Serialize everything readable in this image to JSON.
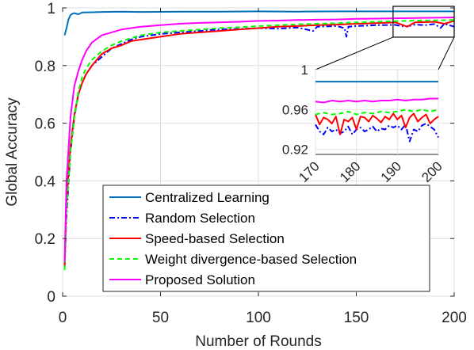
{
  "chart_data": {
    "type": "line",
    "xlabel": "Number of Rounds",
    "ylabel": "Global Accuracy",
    "xlim": [
      0,
      200
    ],
    "ylim": [
      0,
      1
    ],
    "xticks": [
      0,
      50,
      100,
      150,
      200
    ],
    "yticks": [
      0,
      0.2,
      0.4,
      0.6,
      0.8,
      1
    ],
    "xtick_labels": [
      "0",
      "50",
      "100",
      "150",
      "200"
    ],
    "ytick_labels": [
      "0",
      "0.2",
      "0.4",
      "0.6",
      "0.8",
      "1"
    ],
    "grid": true,
    "legend_position": "bottom-right",
    "series": [
      {
        "name": "Centralized Learning",
        "color": "#0072BD",
        "dash": "solid",
        "points": [
          [
            1,
            0.905
          ],
          [
            2,
            0.93
          ],
          [
            3,
            0.96
          ],
          [
            4,
            0.975
          ],
          [
            5,
            0.98
          ],
          [
            6,
            0.982
          ],
          [
            8,
            0.978
          ],
          [
            10,
            0.984
          ],
          [
            15,
            0.985
          ],
          [
            20,
            0.986
          ],
          [
            30,
            0.987
          ],
          [
            40,
            0.986
          ],
          [
            60,
            0.987
          ],
          [
            80,
            0.987
          ],
          [
            100,
            0.988
          ],
          [
            120,
            0.987
          ],
          [
            140,
            0.988
          ],
          [
            160,
            0.988
          ],
          [
            180,
            0.988
          ],
          [
            200,
            0.988
          ]
        ]
      },
      {
        "name": "Random Selection",
        "color": "#0000FF",
        "dash": "dashdot",
        "points": [
          [
            1,
            0.1
          ],
          [
            2,
            0.28
          ],
          [
            4,
            0.5
          ],
          [
            6,
            0.62
          ],
          [
            8,
            0.7
          ],
          [
            10,
            0.74
          ],
          [
            12,
            0.77
          ],
          [
            15,
            0.8
          ],
          [
            20,
            0.83
          ],
          [
            25,
            0.86
          ],
          [
            30,
            0.875
          ],
          [
            35,
            0.89
          ],
          [
            40,
            0.9
          ],
          [
            50,
            0.91
          ],
          [
            60,
            0.915
          ],
          [
            70,
            0.92
          ],
          [
            80,
            0.925
          ],
          [
            90,
            0.927
          ],
          [
            100,
            0.93
          ],
          [
            110,
            0.928
          ],
          [
            120,
            0.932
          ],
          [
            128,
            0.92
          ],
          [
            130,
            0.935
          ],
          [
            140,
            0.937
          ],
          [
            144,
            0.93
          ],
          [
            145,
            0.9
          ],
          [
            146,
            0.935
          ],
          [
            150,
            0.937
          ],
          [
            160,
            0.94
          ],
          [
            170,
            0.941
          ],
          [
            175,
            0.935
          ],
          [
            180,
            0.942
          ],
          [
            185,
            0.94
          ],
          [
            190,
            0.944
          ],
          [
            193,
            0.93
          ],
          [
            195,
            0.945
          ],
          [
            200,
            0.935
          ]
        ]
      },
      {
        "name": "Speed-based Selection",
        "color": "#FF0000",
        "dash": "solid",
        "points": [
          [
            1,
            0.1
          ],
          [
            2,
            0.33
          ],
          [
            4,
            0.52
          ],
          [
            6,
            0.63
          ],
          [
            8,
            0.7
          ],
          [
            10,
            0.74
          ],
          [
            12,
            0.77
          ],
          [
            15,
            0.8
          ],
          [
            20,
            0.84
          ],
          [
            25,
            0.86
          ],
          [
            30,
            0.87
          ],
          [
            35,
            0.885
          ],
          [
            40,
            0.89
          ],
          [
            50,
            0.9
          ],
          [
            60,
            0.91
          ],
          [
            70,
            0.915
          ],
          [
            80,
            0.92
          ],
          [
            90,
            0.925
          ],
          [
            100,
            0.93
          ],
          [
            110,
            0.935
          ],
          [
            120,
            0.937
          ],
          [
            130,
            0.94
          ],
          [
            140,
            0.942
          ],
          [
            150,
            0.945
          ],
          [
            160,
            0.947
          ],
          [
            170,
            0.95
          ],
          [
            176,
            0.935
          ],
          [
            180,
            0.95
          ],
          [
            190,
            0.952
          ],
          [
            195,
            0.945
          ],
          [
            200,
            0.955
          ]
        ]
      },
      {
        "name": "Weight divergence-based Selection",
        "color": "#00FF00",
        "dash": "dashed",
        "points": [
          [
            1,
            0.09
          ],
          [
            2,
            0.3
          ],
          [
            4,
            0.5
          ],
          [
            6,
            0.62
          ],
          [
            8,
            0.71
          ],
          [
            10,
            0.76
          ],
          [
            12,
            0.79
          ],
          [
            15,
            0.82
          ],
          [
            20,
            0.85
          ],
          [
            25,
            0.87
          ],
          [
            30,
            0.885
          ],
          [
            35,
            0.895
          ],
          [
            40,
            0.905
          ],
          [
            50,
            0.915
          ],
          [
            60,
            0.92
          ],
          [
            70,
            0.925
          ],
          [
            80,
            0.93
          ],
          [
            90,
            0.933
          ],
          [
            100,
            0.937
          ],
          [
            110,
            0.94
          ],
          [
            120,
            0.943
          ],
          [
            130,
            0.945
          ],
          [
            140,
            0.947
          ],
          [
            150,
            0.95
          ],
          [
            160,
            0.952
          ],
          [
            170,
            0.954
          ],
          [
            180,
            0.956
          ],
          [
            190,
            0.957
          ],
          [
            200,
            0.958
          ]
        ]
      },
      {
        "name": "Proposed Solution",
        "color": "#FF00FF",
        "dash": "solid",
        "points": [
          [
            1,
            0.12
          ],
          [
            2,
            0.4
          ],
          [
            4,
            0.62
          ],
          [
            6,
            0.73
          ],
          [
            8,
            0.78
          ],
          [
            10,
            0.82
          ],
          [
            12,
            0.85
          ],
          [
            15,
            0.88
          ],
          [
            20,
            0.905
          ],
          [
            25,
            0.915
          ],
          [
            30,
            0.925
          ],
          [
            35,
            0.93
          ],
          [
            40,
            0.935
          ],
          [
            50,
            0.94
          ],
          [
            60,
            0.945
          ],
          [
            70,
            0.948
          ],
          [
            80,
            0.95
          ],
          [
            90,
            0.952
          ],
          [
            100,
            0.955
          ],
          [
            110,
            0.956
          ],
          [
            120,
            0.958
          ],
          [
            130,
            0.959
          ],
          [
            140,
            0.96
          ],
          [
            150,
            0.962
          ],
          [
            160,
            0.963
          ],
          [
            170,
            0.964
          ],
          [
            180,
            0.965
          ],
          [
            190,
            0.966
          ],
          [
            200,
            0.967
          ]
        ]
      }
    ],
    "inset": {
      "xlim": [
        170,
        200
      ],
      "ylim": [
        0.915,
        1.0
      ],
      "xticks": [
        170,
        180,
        190,
        200
      ],
      "yticks": [
        0.92,
        0.96,
        1
      ],
      "xtick_labels": [
        "170",
        "180",
        "190",
        "200"
      ],
      "ytick_labels": [
        "0.92",
        "0.96",
        "1"
      ],
      "series_points": [
        [
          [
            170,
            0.988
          ],
          [
            200,
            0.988
          ]
        ],
        [
          [
            170,
            0.945
          ],
          [
            171,
            0.938
          ],
          [
            172,
            0.935
          ],
          [
            173,
            0.942
          ],
          [
            174,
            0.938
          ],
          [
            175,
            0.94
          ],
          [
            176,
            0.936
          ],
          [
            177,
            0.938
          ],
          [
            178,
            0.943
          ],
          [
            179,
            0.935
          ],
          [
            180,
            0.94
          ],
          [
            181,
            0.942
          ],
          [
            182,
            0.938
          ],
          [
            183,
            0.94
          ],
          [
            184,
            0.943
          ],
          [
            185,
            0.938
          ],
          [
            186,
            0.941
          ],
          [
            187,
            0.94
          ],
          [
            188,
            0.944
          ],
          [
            189,
            0.942
          ],
          [
            190,
            0.944
          ],
          [
            191,
            0.94
          ],
          [
            192,
            0.945
          ],
          [
            193,
            0.928
          ],
          [
            194,
            0.94
          ],
          [
            195,
            0.938
          ],
          [
            196,
            0.944
          ],
          [
            197,
            0.946
          ],
          [
            198,
            0.943
          ],
          [
            199,
            0.94
          ],
          [
            200,
            0.932
          ]
        ],
        [
          [
            170,
            0.955
          ],
          [
            171,
            0.945
          ],
          [
            172,
            0.952
          ],
          [
            173,
            0.95
          ],
          [
            174,
            0.946
          ],
          [
            175,
            0.953
          ],
          [
            176,
            0.935
          ],
          [
            177,
            0.95
          ],
          [
            178,
            0.948
          ],
          [
            179,
            0.952
          ],
          [
            180,
            0.94
          ],
          [
            181,
            0.953
          ],
          [
            182,
            0.952
          ],
          [
            183,
            0.948
          ],
          [
            184,
            0.954
          ],
          [
            185,
            0.951
          ],
          [
            186,
            0.947
          ],
          [
            187,
            0.953
          ],
          [
            188,
            0.95
          ],
          [
            189,
            0.956
          ],
          [
            190,
            0.95
          ],
          [
            191,
            0.954
          ],
          [
            192,
            0.942
          ],
          [
            193,
            0.952
          ],
          [
            194,
            0.956
          ],
          [
            195,
            0.948
          ],
          [
            196,
            0.952
          ],
          [
            197,
            0.955
          ],
          [
            198,
            0.946
          ],
          [
            199,
            0.95
          ],
          [
            200,
            0.953
          ]
        ],
        [
          [
            170,
            0.955
          ],
          [
            172,
            0.957
          ],
          [
            174,
            0.955
          ],
          [
            176,
            0.956
          ],
          [
            178,
            0.958
          ],
          [
            180,
            0.955
          ],
          [
            182,
            0.957
          ],
          [
            184,
            0.956
          ],
          [
            186,
            0.958
          ],
          [
            188,
            0.957
          ],
          [
            190,
            0.958
          ],
          [
            192,
            0.96
          ],
          [
            194,
            0.958
          ],
          [
            196,
            0.96
          ],
          [
            198,
            0.958
          ],
          [
            200,
            0.96
          ]
        ],
        [
          [
            170,
            0.968
          ],
          [
            172,
            0.967
          ],
          [
            174,
            0.969
          ],
          [
            176,
            0.968
          ],
          [
            178,
            0.969
          ],
          [
            180,
            0.968
          ],
          [
            182,
            0.969
          ],
          [
            184,
            0.968
          ],
          [
            186,
            0.969
          ],
          [
            188,
            0.969
          ],
          [
            190,
            0.97
          ],
          [
            192,
            0.969
          ],
          [
            194,
            0.97
          ],
          [
            196,
            0.97
          ],
          [
            198,
            0.971
          ],
          [
            200,
            0.971
          ]
        ]
      ]
    }
  }
}
